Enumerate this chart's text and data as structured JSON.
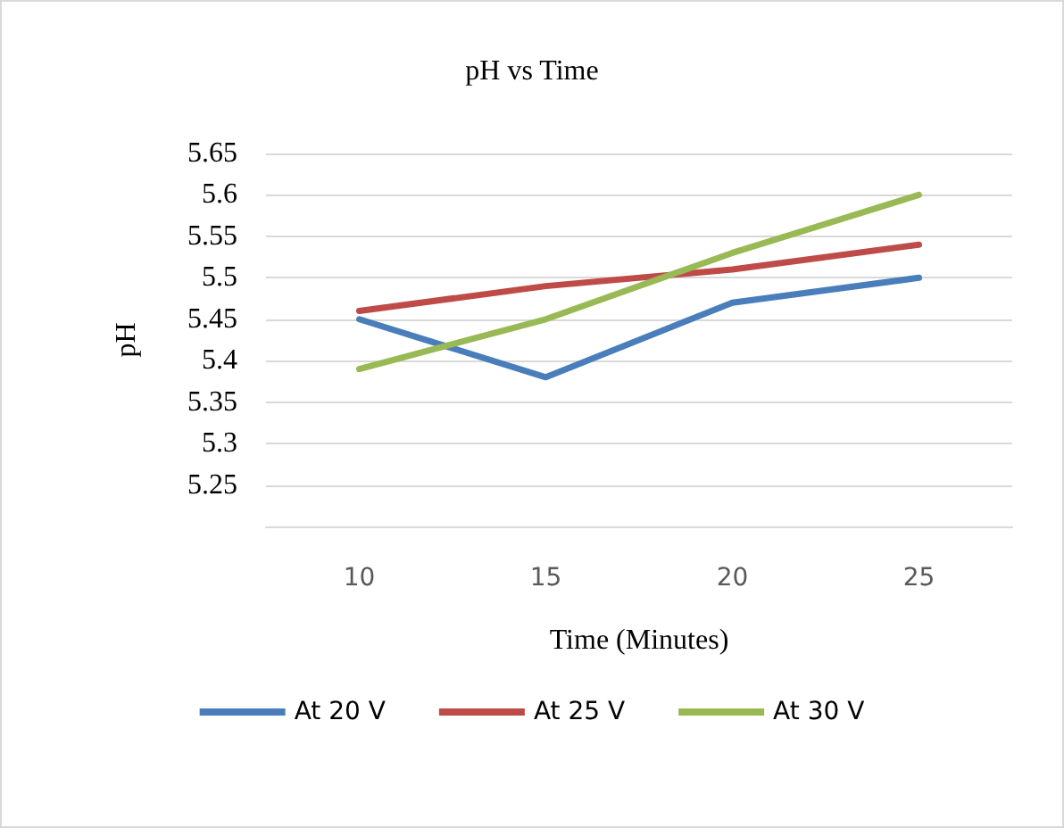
{
  "chart_data": {
    "type": "line",
    "title": "pH vs Time",
    "xlabel": "Time (Minutes)",
    "ylabel": "pH",
    "categories": [
      "10",
      "15",
      "20",
      "25"
    ],
    "series": [
      {
        "name": "At 20 V",
        "color": "#4a7ebb",
        "values": [
          5.45,
          5.38,
          5.47,
          5.5
        ]
      },
      {
        "name": "At 25 V",
        "color": "#be4b48",
        "values": [
          5.46,
          5.49,
          5.51,
          5.54
        ]
      },
      {
        "name": "At 30 V",
        "color": "#98b954",
        "values": [
          5.39,
          5.45,
          5.53,
          5.6
        ]
      }
    ],
    "ylim": [
      5.2,
      5.65
    ],
    "yticks": [
      5.25,
      5.3,
      5.35,
      5.4,
      5.45,
      5.5,
      5.55,
      5.6,
      5.65
    ],
    "grid": "y",
    "legend": "bottom",
    "marker": "none",
    "line_style": "solid"
  }
}
